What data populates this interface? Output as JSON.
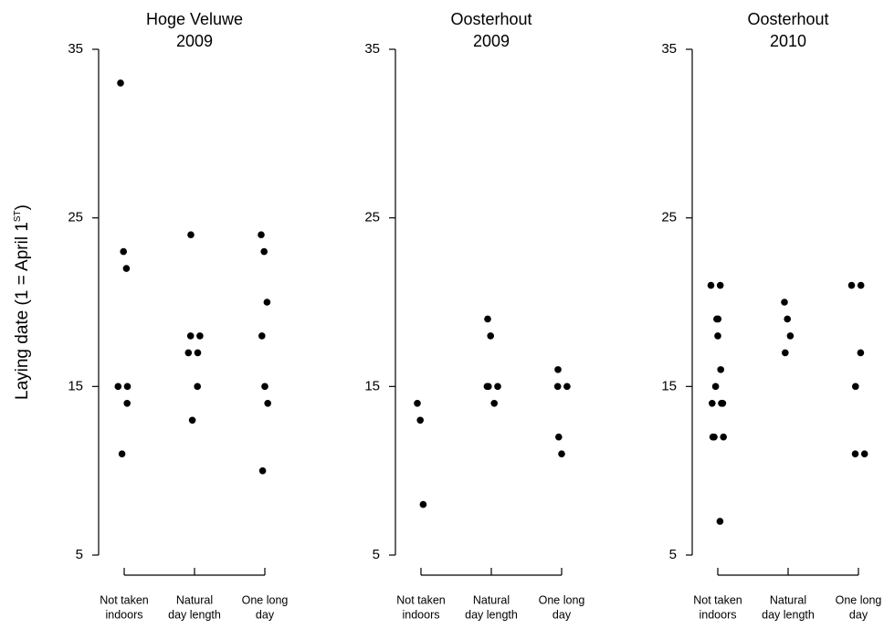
{
  "chart_data": [
    {
      "type": "strip",
      "title": [
        "Hoge Veluwe",
        "2009"
      ],
      "y_label": {
        "text": "Laying date (1 = April 1",
        "superscript": "ST",
        "suffix": ")"
      },
      "categories": [
        [
          "Not taken",
          "indoors"
        ],
        [
          "Natural",
          "day length"
        ],
        [
          "One long",
          "day"
        ]
      ],
      "values": [
        [
          33,
          23,
          22,
          15,
          15,
          14,
          11
        ],
        [
          24,
          18,
          18,
          17,
          17,
          15,
          13
        ],
        [
          24,
          23,
          20,
          18,
          15,
          14,
          10
        ]
      ],
      "color": "#000000",
      "ylim": [
        5,
        35
      ],
      "yticks": [
        5,
        15,
        25,
        35
      ]
    },
    {
      "type": "strip",
      "title": [
        "Oosterhout",
        "2009"
      ],
      "categories": [
        [
          "Not taken",
          "indoors"
        ],
        [
          "Natural",
          "day length"
        ],
        [
          "One long",
          "day"
        ]
      ],
      "values": [
        [
          14,
          13,
          8
        ],
        [
          19,
          18,
          15,
          15,
          15,
          14
        ],
        [
          16,
          15,
          15,
          12,
          11
        ]
      ],
      "color": "#000000",
      "ylim": [
        5,
        35
      ],
      "yticks": [
        5,
        15,
        25,
        35
      ]
    },
    {
      "type": "strip",
      "title": [
        "Oosterhout",
        "2010"
      ],
      "categories": [
        [
          "Not taken",
          "indoors"
        ],
        [
          "Natural",
          "day length"
        ],
        [
          "One long",
          "day"
        ]
      ],
      "values": [
        [
          21,
          21,
          19,
          19,
          18,
          16,
          15,
          14,
          14,
          14,
          12,
          12,
          12,
          7
        ],
        [
          20,
          19,
          18,
          17
        ],
        [
          21,
          21,
          17,
          15,
          11,
          11
        ]
      ],
      "color": "#000000",
      "ylim": [
        5,
        35
      ],
      "yticks": [
        5,
        15,
        25,
        35
      ]
    }
  ]
}
